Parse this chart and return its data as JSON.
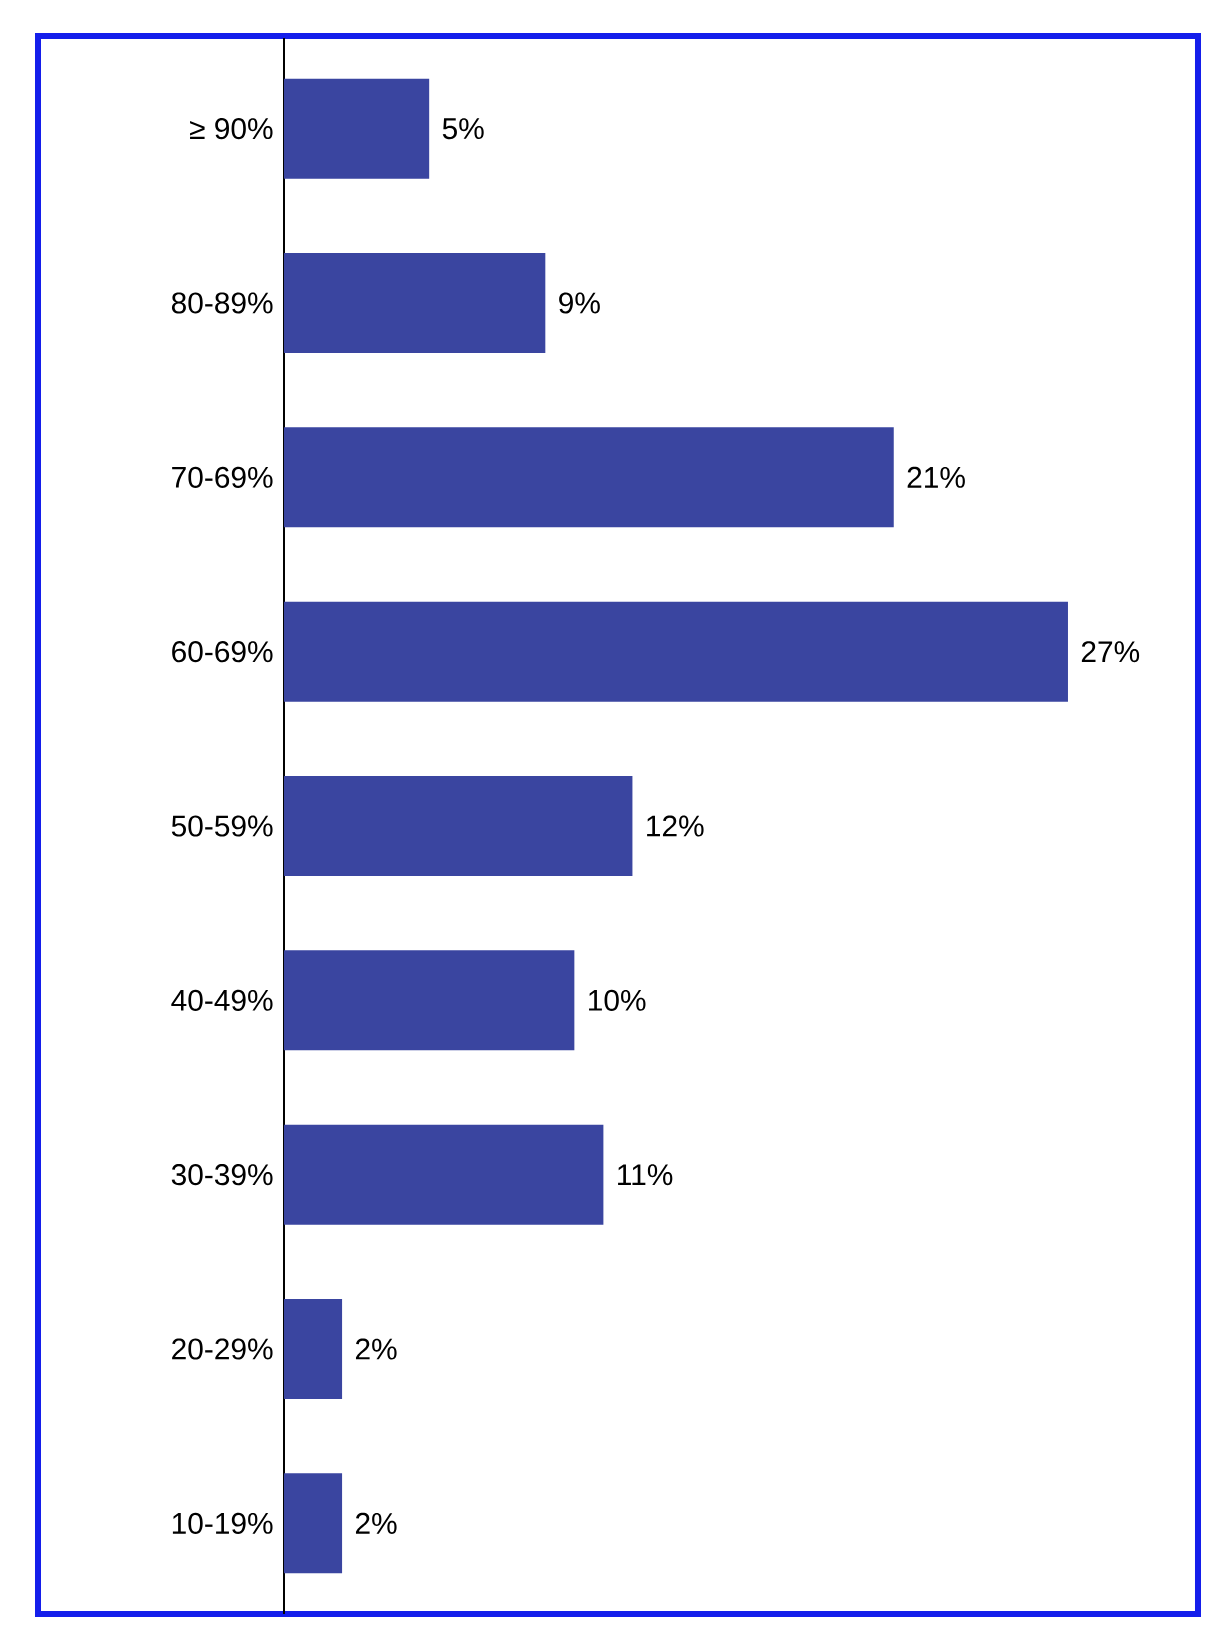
{
  "chart_data": {
    "type": "bar",
    "orientation": "horizontal",
    "categories": [
      "≥ 90%",
      "80-89%",
      "70-69%",
      "60-69%",
      "50-59%",
      "40-49%",
      "30-39%",
      "20-29%",
      "10-19%"
    ],
    "values": [
      5,
      9,
      21,
      27,
      12,
      10,
      11,
      2,
      2
    ],
    "value_labels": [
      "5%",
      "9%",
      "21%",
      "27%",
      "12%",
      "10%",
      "11%",
      "2%",
      "2%"
    ],
    "color": "#3a45a0"
  }
}
